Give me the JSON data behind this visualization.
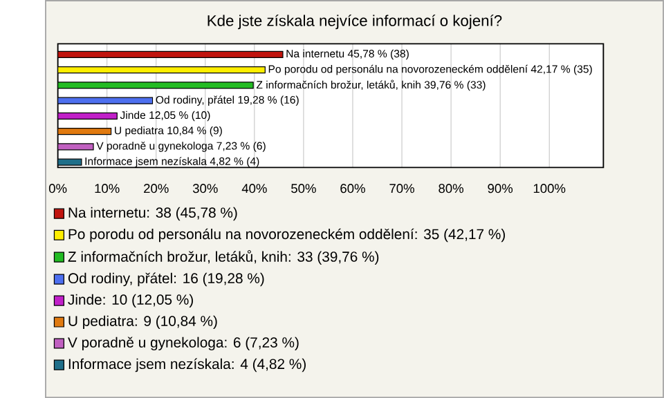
{
  "chart_data": {
    "type": "bar",
    "orientation": "horizontal",
    "title": "Kde jste získala nejvíce informací o kojení?",
    "categories": [
      null,
      null,
      null,
      null,
      null,
      null,
      null,
      null
    ],
    "xlim": [
      0,
      111
    ],
    "xticks": [
      {
        "value": 0,
        "label": "0%"
      },
      {
        "value": 10,
        "label": "10%"
      },
      {
        "value": 20,
        "label": "20%"
      },
      {
        "value": 30,
        "label": "30%"
      },
      {
        "value": 40,
        "label": "40%"
      },
      {
        "value": 50,
        "label": "50%"
      },
      {
        "value": 60,
        "label": "60%"
      },
      {
        "value": 70,
        "label": "70%"
      },
      {
        "value": 80,
        "label": "80%"
      },
      {
        "value": 90,
        "label": "90%"
      },
      {
        "value": 100,
        "label": "100%"
      }
    ],
    "grid": "x",
    "legend": "bottom",
    "series": [
      {
        "name": "Na internetu: 38 (45,78 %)",
        "color": "#c0140e",
        "values": [
          45.78,
          null,
          null,
          null,
          null,
          null,
          null,
          null
        ],
        "value_labels": [
          "Na internetu 45,78 % (38)",
          null,
          null,
          null,
          null,
          null,
          null,
          null
        ]
      },
      {
        "name": "Po porodu od personálu na novorozeneckém oddělení: 35 (42,17 %)",
        "color": "#ffee00",
        "values": [
          null,
          42.17,
          null,
          null,
          null,
          null,
          null,
          null
        ],
        "value_labels": [
          null,
          "Po porodu od personálu na novorozeneckém oddělení 42,17 % (35)",
          null,
          null,
          null,
          null,
          null,
          null
        ]
      },
      {
        "name": "Z informačních brožur, letáků, knih: 33 (39,76 %)",
        "color": "#22bb22",
        "values": [
          null,
          null,
          39.76,
          null,
          null,
          null,
          null,
          null
        ],
        "value_labels": [
          null,
          null,
          "Z informačních brožur, letáků, knih 39,76 % (33)",
          null,
          null,
          null,
          null,
          null
        ]
      },
      {
        "name": "Od rodiny, přátel: 16 (19,28 %)",
        "color": "#4d6fef",
        "values": [
          null,
          null,
          null,
          19.28,
          null,
          null,
          null,
          null
        ],
        "value_labels": [
          null,
          null,
          null,
          "Od rodiny, přátel 19,28 % (16)",
          null,
          null,
          null,
          null
        ]
      },
      {
        "name": "Jinde: 10 (12,05 %)",
        "color": "#c01fc8",
        "values": [
          null,
          null,
          null,
          null,
          12.05,
          null,
          null,
          null
        ],
        "value_labels": [
          null,
          null,
          null,
          null,
          "Jinde 12,05 % (10)",
          null,
          null,
          null
        ]
      },
      {
        "name": "U pediatra: 9 (10,84 %)",
        "color": "#e07a10",
        "values": [
          null,
          null,
          null,
          null,
          null,
          10.84,
          null,
          null
        ],
        "value_labels": [
          null,
          null,
          null,
          null,
          null,
          "U pediatra 10,84 % (9)",
          null,
          null
        ]
      },
      {
        "name": "V poradně u gynekologa: 6 (7,23 %)",
        "color": "#c060c0",
        "values": [
          null,
          null,
          null,
          null,
          null,
          null,
          7.23,
          null
        ],
        "value_labels": [
          null,
          null,
          null,
          null,
          null,
          null,
          "V poradně u gynekologa 7,23 % (6)",
          null
        ]
      },
      {
        "name": "Informace jsem nezískala: 4 (4,82 %)",
        "color": "#1f6f8a",
        "values": [
          null,
          null,
          null,
          null,
          null,
          null,
          null,
          4.82
        ],
        "value_labels": [
          null,
          null,
          null,
          null,
          null,
          null,
          null,
          "Informace jsem nezískala 4,82 % (4)"
        ]
      }
    ]
  }
}
